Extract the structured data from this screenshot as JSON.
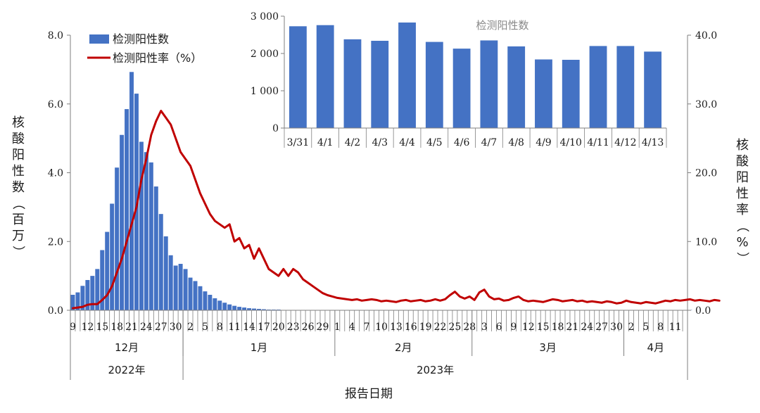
{
  "colors": {
    "bar": "#4472c4",
    "line": "#c00000",
    "axis": "#7f7f7f",
    "text": "#1a1a1a",
    "inset_title": "#888888"
  },
  "chart_data": [
    {
      "type": "bar+line",
      "legend": [
        "检测阳性数",
        "检测阳性率（%）"
      ],
      "legend_placement": "top-left",
      "ylabel_left": "核酸阳性数（百万）",
      "ylabel_right": "核酸阳性率（%）",
      "xlabel": "报告日期",
      "ylim_left": [
        0,
        8
      ],
      "ylim_right": [
        0,
        40
      ],
      "yticks_left": [
        "0.0",
        "2.0",
        "4.0",
        "6.0",
        "8.0"
      ],
      "yticks_right": [
        "0.0",
        "10.0",
        "20.0",
        "30.0",
        "40.0"
      ],
      "start_date": "2022-12-09",
      "end_date": "2023-04-13",
      "xtick_labels": [
        "9",
        "12",
        "15",
        "18",
        "21",
        "24",
        "27",
        "30",
        "2",
        "5",
        "8",
        "11",
        "14",
        "17",
        "20",
        "23",
        "26",
        "29",
        "1",
        "4",
        "7",
        "10",
        "13",
        "16",
        "19",
        "22",
        "25",
        "28",
        "3",
        "6",
        "9",
        "12",
        "15",
        "18",
        "21",
        "24",
        "27",
        "30",
        "2",
        "5",
        "8",
        "11"
      ],
      "months": [
        {
          "label": "12月",
          "start": "2022-12-09",
          "end": "2022-12-31"
        },
        {
          "label": "1月",
          "start": "2023-01-01",
          "end": "2023-01-31"
        },
        {
          "label": "2月",
          "start": "2023-02-01",
          "end": "2023-02-28"
        },
        {
          "label": "3月",
          "start": "2023-03-01",
          "end": "2023-03-31"
        },
        {
          "label": "4月",
          "start": "2023-04-01",
          "end": "2023-04-13"
        }
      ],
      "years": [
        {
          "label": "2022年",
          "start": "2022-12-09",
          "end": "2022-12-31"
        },
        {
          "label": "2023年",
          "start": "2023-01-01",
          "end": "2023-04-13"
        }
      ],
      "series": [
        {
          "name": "检测阳性数",
          "axis": "left",
          "values": [
            0.45,
            0.52,
            0.71,
            0.88,
            1.0,
            1.2,
            1.75,
            2.28,
            3.1,
            4.15,
            5.1,
            5.85,
            6.93,
            6.3,
            4.9,
            4.6,
            4.3,
            3.6,
            2.8,
            2.15,
            1.6,
            1.3,
            1.35,
            1.2,
            0.95,
            0.85,
            0.7,
            0.55,
            0.45,
            0.35,
            0.28,
            0.22,
            0.17,
            0.13,
            0.1,
            0.08,
            0.06,
            0.05,
            0.04,
            0.03,
            0.02,
            0.02,
            0.02,
            0.01,
            0.01,
            0.01,
            0.01,
            0.01,
            0.01,
            0.01,
            0.01,
            0.01,
            0.01,
            0.01,
            0.01,
            0.01,
            0.01,
            0.01,
            0.01,
            0.01,
            0.01,
            0.01,
            0.01,
            0.01,
            0.01,
            0.01,
            0.01,
            0.01,
            0.01,
            0.01,
            0.01,
            0.01,
            0.01,
            0.01,
            0.01,
            0.01,
            0.01,
            0.01,
            0.01,
            0.01,
            0.01,
            0.01,
            0.01,
            0.01,
            0.01,
            0.01,
            0.01,
            0.01,
            0.01,
            0.01,
            0.01,
            0.01,
            0.01,
            0.01,
            0.01,
            0.01,
            0.01,
            0.01,
            0.01,
            0.01,
            0.01,
            0.01,
            0.01,
            0.01,
            0.01,
            0.01,
            0.01,
            0.01,
            0.01,
            0.01,
            0.01,
            0.01,
            0.01,
            0.01,
            0.01,
            0.01,
            0.01,
            0.01,
            0.01,
            0.01,
            0.01,
            0.01,
            0.01,
            0.01,
            0.01,
            0.01,
            0.01
          ]
        },
        {
          "name": "检测阳性率（%）",
          "axis": "right",
          "values": [
            0.3,
            0.4,
            0.5,
            0.8,
            0.9,
            0.9,
            1.5,
            2.2,
            3.5,
            5.5,
            7.5,
            10.0,
            12.5,
            15.0,
            19.0,
            22.0,
            25.5,
            27.5,
            29.0,
            28.0,
            27.0,
            25.0,
            23.0,
            22.0,
            21.0,
            19.0,
            17.0,
            15.5,
            14.0,
            13.0,
            12.5,
            12.0,
            12.5,
            10.0,
            10.5,
            9.0,
            9.5,
            7.5,
            9.0,
            7.5,
            6.0,
            5.5,
            5.0,
            6.0,
            5.0,
            6.0,
            5.5,
            4.5,
            4.0,
            3.5,
            3.0,
            2.5,
            2.2,
            2.0,
            1.8,
            1.7,
            1.6,
            1.5,
            1.6,
            1.4,
            1.5,
            1.6,
            1.5,
            1.3,
            1.4,
            1.3,
            1.2,
            1.4,
            1.5,
            1.3,
            1.4,
            1.5,
            1.3,
            1.4,
            1.6,
            1.4,
            1.6,
            2.2,
            2.7,
            2.0,
            1.7,
            2.0,
            1.5,
            2.6,
            3.0,
            2.0,
            1.6,
            1.7,
            1.4,
            1.5,
            1.8,
            2.0,
            1.5,
            1.3,
            1.4,
            1.3,
            1.2,
            1.4,
            1.6,
            1.5,
            1.3,
            1.4,
            1.5,
            1.3,
            1.4,
            1.2,
            1.3,
            1.2,
            1.1,
            1.3,
            1.2,
            1.0,
            1.1,
            1.4,
            1.2,
            1.1,
            1.0,
            1.2,
            1.1,
            1.0,
            1.2,
            1.4,
            1.3,
            1.5,
            1.4,
            1.5,
            1.6,
            1.4,
            1.5,
            1.4,
            1.3,
            1.5,
            1.4
          ]
        }
      ]
    },
    {
      "type": "bar",
      "title": "检测阳性数",
      "categories": [
        "3/31",
        "4/1",
        "4/2",
        "4/3",
        "4/4",
        "4/5",
        "4/6",
        "4/7",
        "4/8",
        "4/9",
        "4/10",
        "4/11",
        "4/12",
        "4/13"
      ],
      "values": [
        2730,
        2760,
        2380,
        2340,
        2830,
        2310,
        2130,
        2350,
        2190,
        1840,
        1830,
        2200,
        2200,
        2050
      ],
      "ylim": [
        0,
        3000
      ],
      "yticks": [
        "0",
        "1 000",
        "2 000",
        "3 000"
      ]
    }
  ]
}
